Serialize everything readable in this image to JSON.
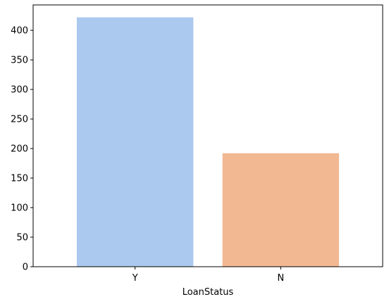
{
  "chart_data": {
    "type": "bar",
    "title": "",
    "xlabel": "LoanStatus",
    "ylabel": "",
    "categories": [
      "Y",
      "N"
    ],
    "values": [
      422,
      192
    ],
    "colors": [
      "#abc9ee",
      "#f1b892"
    ],
    "ylim": [
      0,
      443
    ],
    "yticks": [
      0,
      50,
      100,
      150,
      200,
      250,
      300,
      350,
      400
    ],
    "grid": false,
    "legend": "none"
  }
}
